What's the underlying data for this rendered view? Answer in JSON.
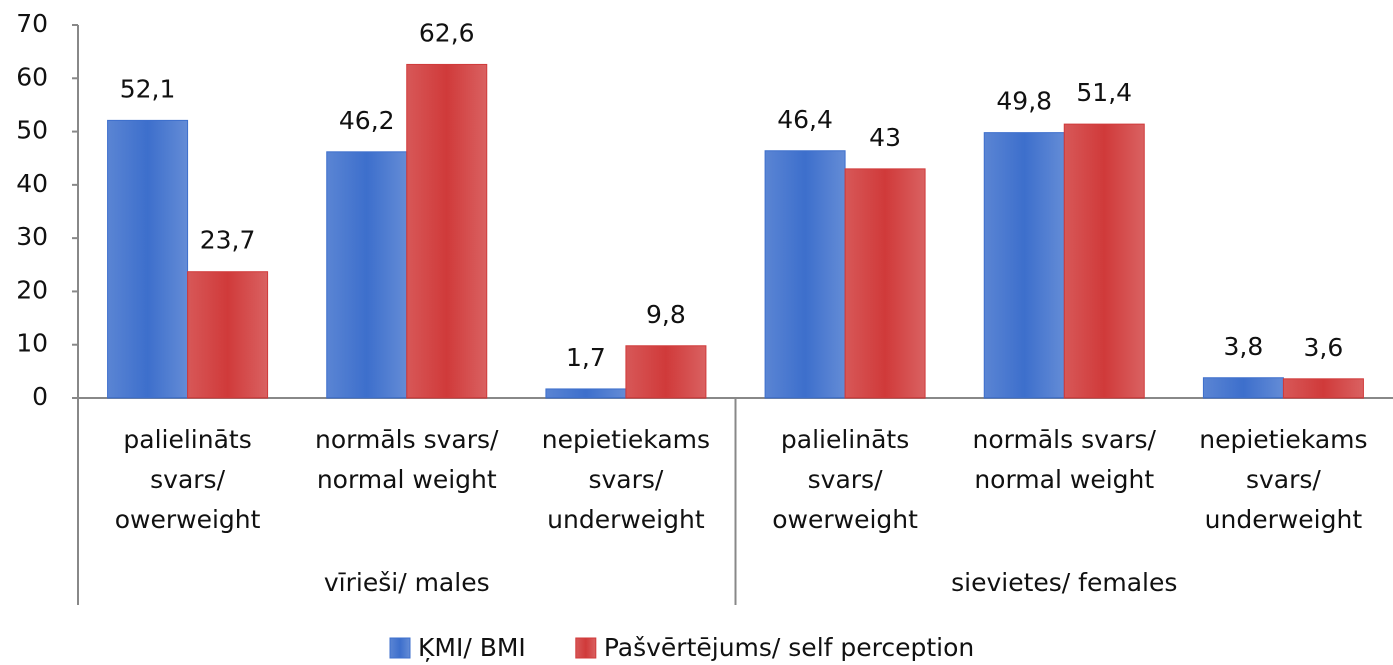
{
  "chart_data": {
    "type": "bar",
    "categories": [
      "palielināts svars/ owerweight",
      "normāls svars/ normal weight",
      "nepietiekams svars/ underweight",
      "palielināts svars/ owerweight",
      "normāls svars/ normal weight",
      "nepietiekams svars/ underweight"
    ],
    "groups": [
      "vīrieši/ males",
      "sievietes/ females"
    ],
    "series": [
      {
        "name": "ĶMI/ BMI",
        "color": "#3d6fcc",
        "values": [
          52.1,
          46.2,
          1.7,
          46.4,
          49.8,
          3.8
        ],
        "value_labels": [
          "52,1",
          "46,2",
          "1,7",
          "46,4",
          "49,8",
          "3,8"
        ]
      },
      {
        "name": "Pašvērtējums/ self perception",
        "color": "#d03a3a",
        "values": [
          23.7,
          62.6,
          9.8,
          43,
          51.4,
          3.6
        ],
        "value_labels": [
          "23,7",
          "62,6",
          "9,8",
          "43",
          "51,4",
          "3,6"
        ]
      }
    ],
    "ylim": [
      0,
      70
    ],
    "yticks": [
      0,
      10,
      20,
      30,
      40,
      50,
      60,
      70
    ],
    "grid": false,
    "legend": "bottom"
  }
}
